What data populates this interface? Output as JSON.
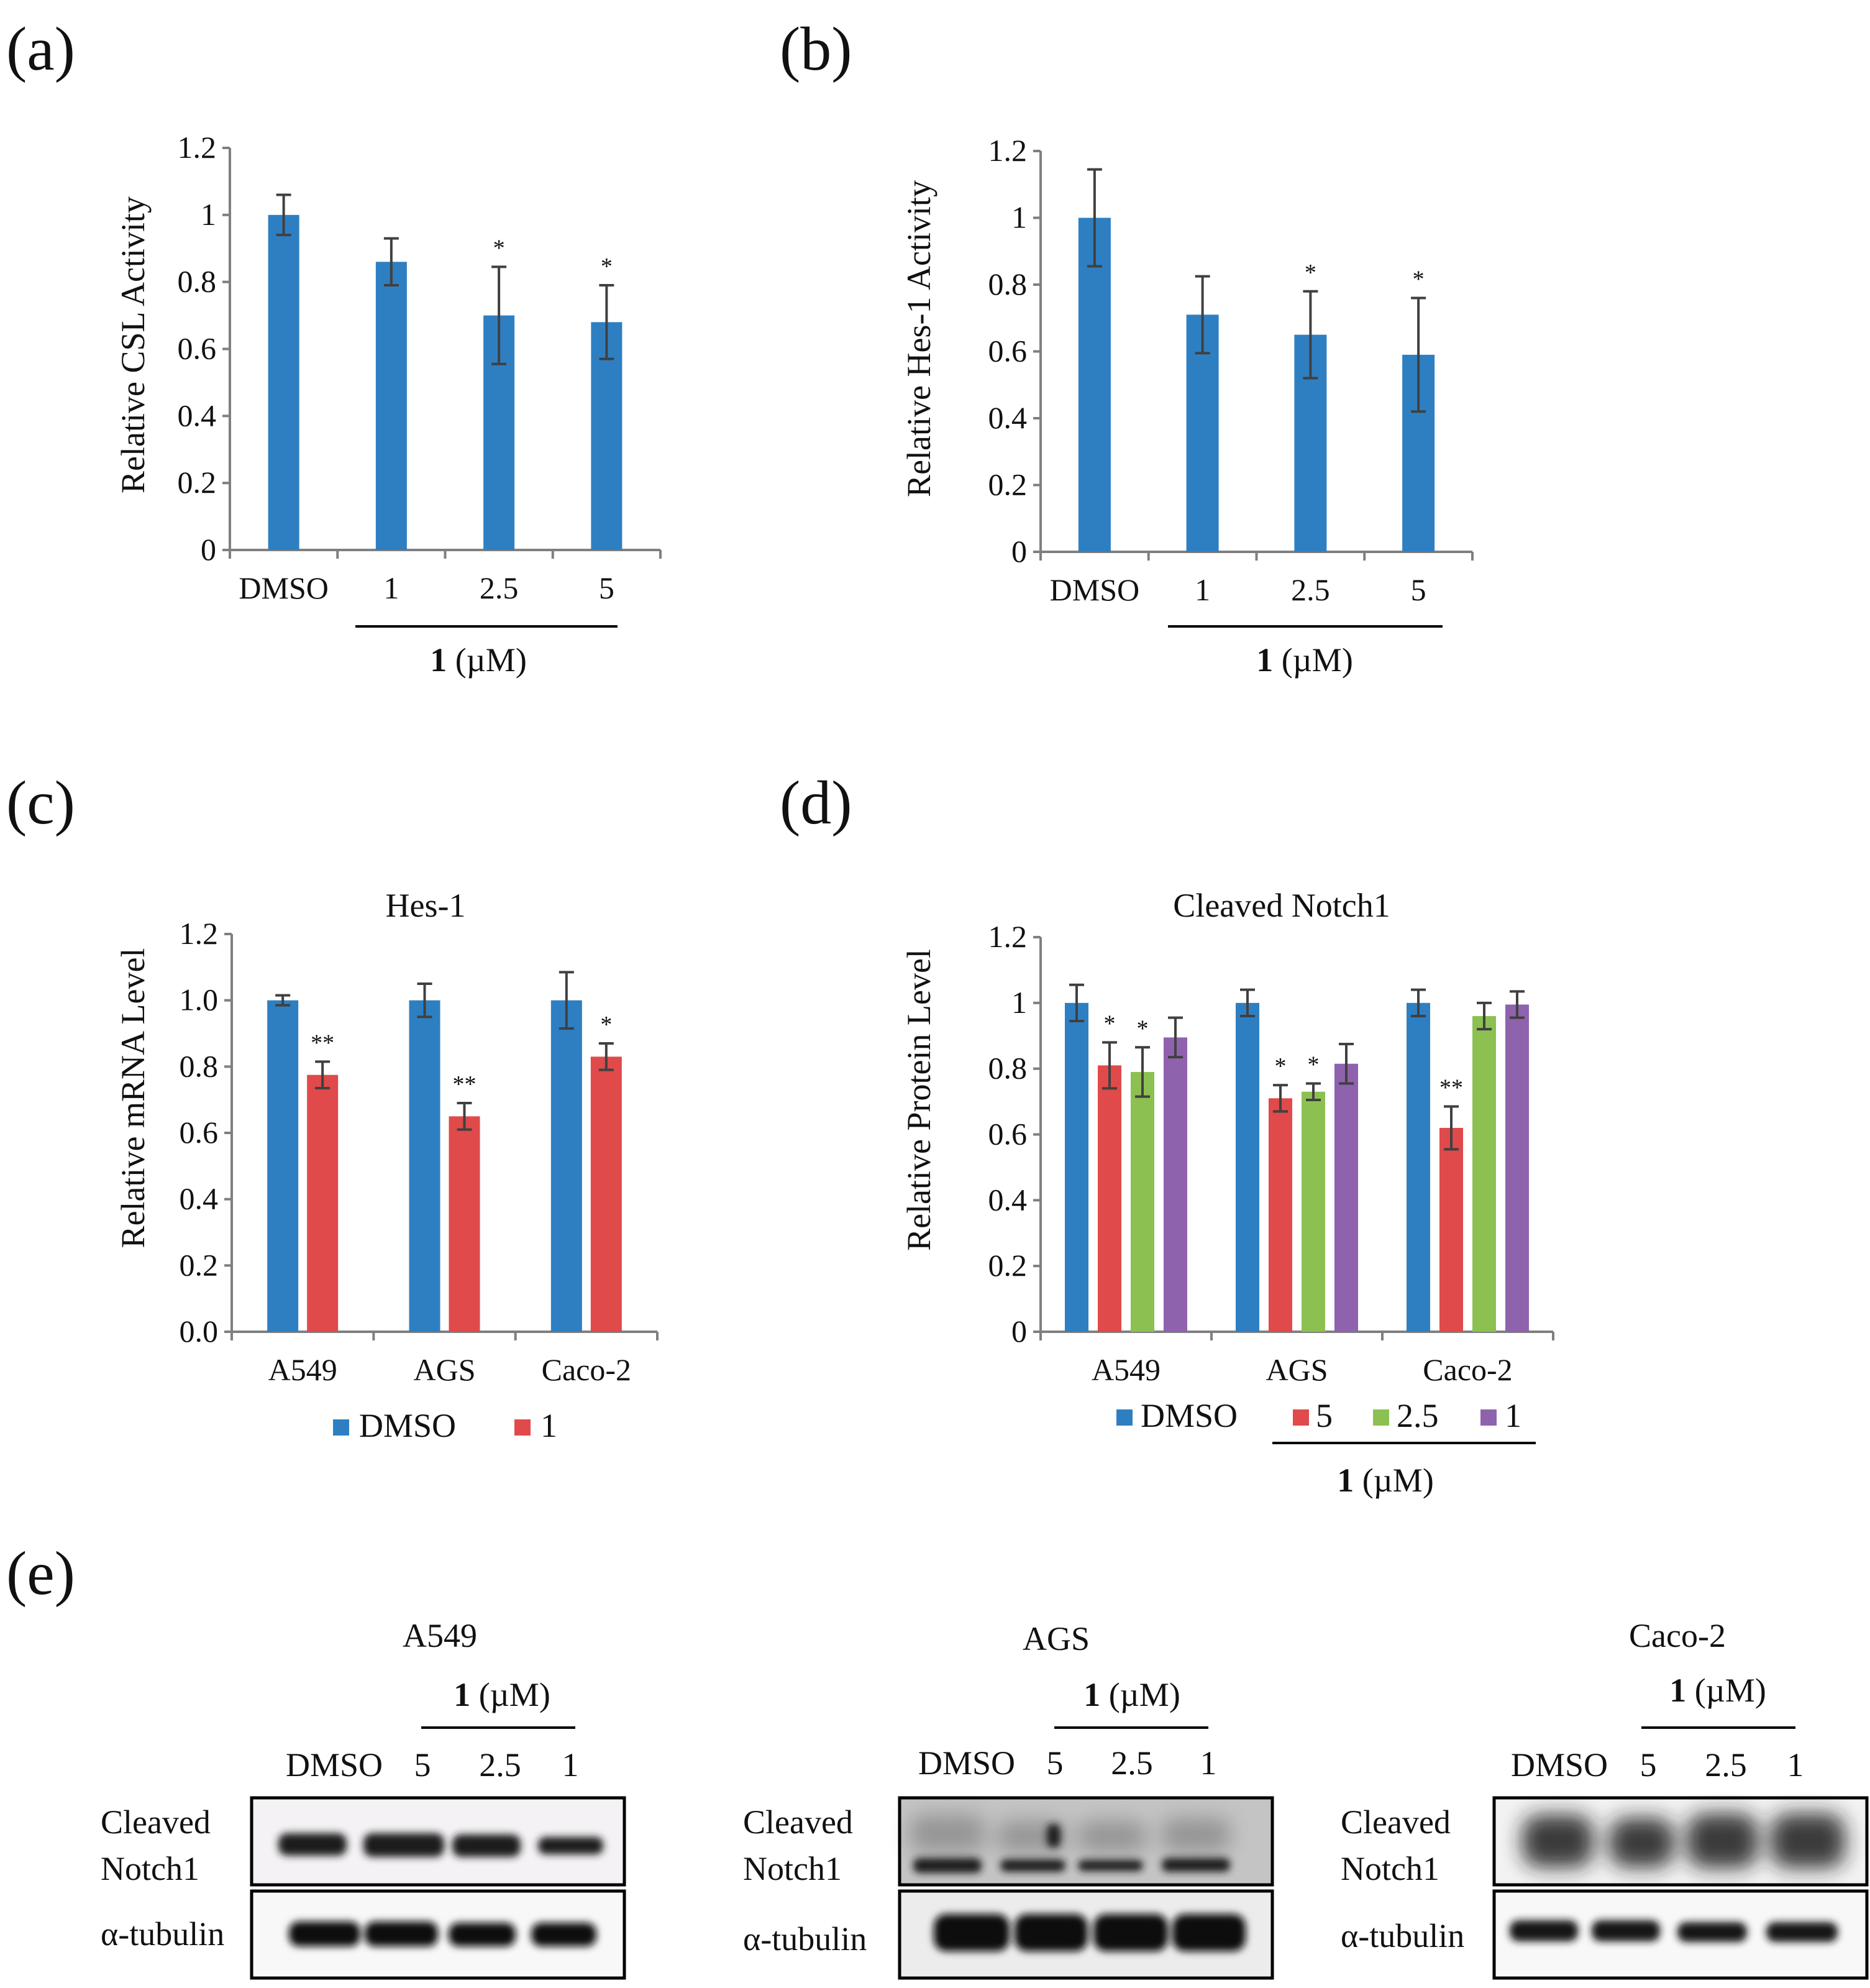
{
  "panels": {
    "a": "(a)",
    "b": "(b)",
    "c": "(c)",
    "d": "(d)",
    "e": "(e)"
  },
  "colors": {
    "blue": "#2e7fc2",
    "red": "#e04a4a",
    "green": "#8cc152",
    "purple": "#8e62ad",
    "axis": "#7f7f7f",
    "error_bar": "#404040"
  },
  "chart_data": [
    {
      "id": "a",
      "type": "bar",
      "title": "",
      "ylabel": "Relative CSL Activity",
      "xlabel": "",
      "ylim": [
        0,
        1.2
      ],
      "yticks": [
        "0",
        "0.2",
        "0.4",
        "0.6",
        "0.8",
        "1",
        "1.2"
      ],
      "categories": [
        "DMSO",
        "1",
        "2.5",
        "5"
      ],
      "series": [
        {
          "name": "",
          "color": "#2e7fc2",
          "values": [
            1.0,
            0.86,
            0.7,
            0.68
          ],
          "errors": [
            0.06,
            0.07,
            0.145,
            0.11
          ],
          "stars": [
            "",
            "",
            "*",
            "*"
          ]
        }
      ],
      "group_label": {
        "bold": "1",
        "rest": " (µM)"
      }
    },
    {
      "id": "b",
      "type": "bar",
      "title": "",
      "ylabel": "Relative Hes-1 Activity",
      "xlabel": "",
      "ylim": [
        0,
        1.2
      ],
      "yticks": [
        "0",
        "0.2",
        "0.4",
        "0.6",
        "0.8",
        "1",
        "1.2"
      ],
      "categories": [
        "DMSO",
        "1",
        "2.5",
        "5"
      ],
      "series": [
        {
          "name": "",
          "color": "#2e7fc2",
          "values": [
            1.0,
            0.71,
            0.65,
            0.59
          ],
          "errors": [
            0.145,
            0.115,
            0.13,
            0.17
          ],
          "stars": [
            "",
            "",
            "*",
            "*"
          ]
        }
      ],
      "group_label": {
        "bold": "1",
        "rest": " (µM)"
      }
    },
    {
      "id": "c",
      "type": "bar",
      "title": "Hes-1",
      "ylabel": "Relative mRNA Level",
      "xlabel": "",
      "ylim": [
        0,
        1.2
      ],
      "yticks": [
        "0.0",
        "0.2",
        "0.4",
        "0.6",
        "0.8",
        "1.0",
        "1.2"
      ],
      "categories": [
        "A549",
        "AGS",
        "Caco-2"
      ],
      "series": [
        {
          "name": "DMSO",
          "color": "#2e7fc2",
          "values": [
            1.0,
            1.0,
            1.0
          ],
          "errors": [
            0.015,
            0.05,
            0.085
          ],
          "stars": [
            "",
            "",
            ""
          ]
        },
        {
          "name": "1",
          "color": "#e04a4a",
          "values": [
            0.775,
            0.65,
            0.83
          ],
          "errors": [
            0.04,
            0.04,
            0.04
          ],
          "stars": [
            "**",
            "**",
            "*"
          ]
        }
      ],
      "legend_position": "bottom",
      "group_label": null
    },
    {
      "id": "d",
      "type": "bar",
      "title": "Cleaved Notch1",
      "ylabel": "Relative Protein Level",
      "xlabel": "",
      "ylim": [
        0,
        1.2
      ],
      "yticks": [
        "0",
        "0.2",
        "0.4",
        "0.6",
        "0.8",
        "1",
        "1.2"
      ],
      "categories": [
        "A549",
        "AGS",
        "Caco-2"
      ],
      "series": [
        {
          "name": "DMSO",
          "color": "#2e7fc2",
          "values": [
            1.0,
            1.0,
            1.0
          ],
          "errors": [
            0.055,
            0.04,
            0.04
          ],
          "stars": [
            "",
            "",
            ""
          ]
        },
        {
          "name": "5",
          "color": "#e04a4a",
          "values": [
            0.81,
            0.71,
            0.62
          ],
          "errors": [
            0.07,
            0.04,
            0.065
          ],
          "stars": [
            "*",
            "*",
            "**"
          ]
        },
        {
          "name": "2.5",
          "color": "#8cc152",
          "values": [
            0.79,
            0.73,
            0.96
          ],
          "errors": [
            0.075,
            0.025,
            0.04
          ],
          "stars": [
            "*",
            "*",
            ""
          ]
        },
        {
          "name": "1",
          "color": "#8e62ad",
          "values": [
            0.895,
            0.815,
            0.995
          ],
          "errors": [
            0.06,
            0.06,
            0.04
          ],
          "stars": [
            "",
            "",
            ""
          ]
        }
      ],
      "legend_position": "bottom",
      "group_label": {
        "bold": "1",
        "rest": " (µM)"
      }
    }
  ],
  "western_blots": {
    "lane_labels": [
      "DMSO",
      "5",
      "2.5",
      "1"
    ],
    "group_label": {
      "bold": "1",
      "rest": " (µM)"
    },
    "row_labels": {
      "notch_line1": "Cleaved",
      "notch_line2": "Notch1",
      "tubulin": "α-tubulin"
    },
    "blots": [
      {
        "cell_line": "A549"
      },
      {
        "cell_line": "AGS"
      },
      {
        "cell_line": "Caco-2"
      }
    ]
  }
}
